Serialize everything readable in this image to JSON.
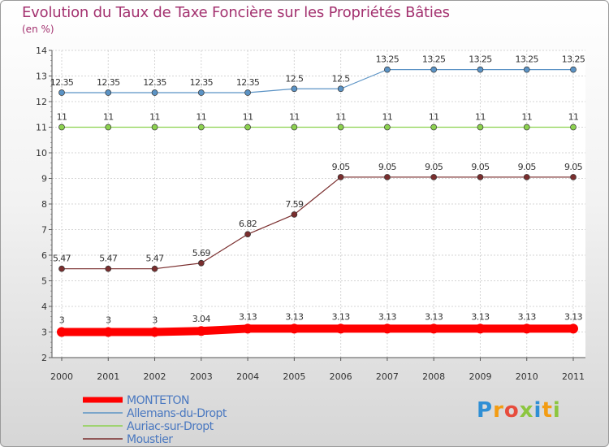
{
  "title": "Evolution du Taux de Taxe Foncière sur les Propriétés Bâties",
  "unit": "(en %)",
  "logo": {
    "text": "Proxiti",
    "colors": [
      "#2f8fd5",
      "#f39c12",
      "#e74c3c",
      "#8cc63f",
      "#2f8fd5",
      "#f39c12",
      "#8cc63f"
    ]
  },
  "chart_data": {
    "type": "line",
    "title": "Evolution du Taux de Taxe Foncière sur les Propriétés Bâties",
    "ylabel": "(en %)",
    "xlabel": "",
    "ylim": [
      2,
      14
    ],
    "yticks": [
      "2",
      "3",
      "4",
      "5",
      "6",
      "7",
      "8",
      "9",
      "10",
      "11",
      "12",
      "13",
      "14"
    ],
    "categories": [
      "2000",
      "2001",
      "2002",
      "2003",
      "2004",
      "2005",
      "2006",
      "2007",
      "2008",
      "2009",
      "2010",
      "2011"
    ],
    "series": [
      {
        "name": "MONTETON",
        "color": "#ff0000",
        "values": [
          3,
          3,
          3,
          3.04,
          3.13,
          3.13,
          3.13,
          3.13,
          3.13,
          3.13,
          3.13,
          3.13
        ],
        "labels": [
          "3",
          "3",
          "3",
          "3.04",
          "3.13",
          "3.13",
          "3.13",
          "3.13",
          "3.13",
          "3.13",
          "3.13",
          "3.13"
        ]
      },
      {
        "name": "Allemans-du-Dropt",
        "color": "#5b93c5",
        "values": [
          12.35,
          12.35,
          12.35,
          12.35,
          12.35,
          12.5,
          12.5,
          13.25,
          13.25,
          13.25,
          13.25,
          13.25
        ],
        "labels": [
          "12.35",
          "12.35",
          "12.35",
          "12.35",
          "12.35",
          "12.5",
          "12.5",
          "13.25",
          "13.25",
          "13.25",
          "13.25",
          "13.25"
        ]
      },
      {
        "name": "Auriac-sur-Dropt",
        "color": "#8cd14f",
        "values": [
          11,
          11,
          11,
          11,
          11,
          11,
          11,
          11,
          11,
          11,
          11,
          11
        ],
        "labels": [
          "11",
          "11",
          "11",
          "11",
          "11",
          "11",
          "11",
          "11",
          "11",
          "11",
          "11",
          "11"
        ]
      },
      {
        "name": "Moustier",
        "color": "#7a2e2e",
        "values": [
          5.47,
          5.47,
          5.47,
          5.69,
          6.82,
          7.59,
          9.05,
          9.05,
          9.05,
          9.05,
          9.05,
          9.05
        ],
        "labels": [
          "5.47",
          "5.47",
          "5.47",
          "5.69",
          "6.82",
          "7.59",
          "9.05",
          "9.05",
          "9.05",
          "9.05",
          "9.05",
          "9.05"
        ]
      }
    ],
    "legend_position": "bottom-left",
    "grid": true
  }
}
